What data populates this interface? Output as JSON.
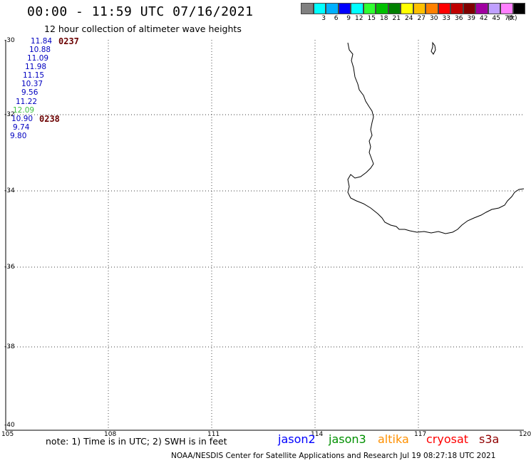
{
  "header": {
    "title": "00:00 - 11:59 UTC 07/16/2021",
    "subtitle": "12 hour collection of altimeter wave heights"
  },
  "colorbar": {
    "colors": [
      "#808080",
      "#00ffff",
      "#00b0ff",
      "#0000ff",
      "#00ffff",
      "#30ff30",
      "#00c000",
      "#008000",
      "#ffff00",
      "#ffc000",
      "#ff8000",
      "#ff0000",
      "#c00000",
      "#800000",
      "#a000a0",
      "#c0a0ff",
      "#ff80ff",
      "#000000"
    ],
    "labels": [
      "3",
      "6",
      "9",
      "12",
      "15",
      "18",
      "21",
      "24",
      "27",
      "30",
      "33",
      "36",
      "39",
      "42",
      "45",
      "70"
    ],
    "unit": "(ft)"
  },
  "axes": {
    "lat_labels": [
      "-30",
      "-32",
      "-34",
      "-36",
      "-38",
      "-40"
    ],
    "lon_labels": [
      "105",
      "108",
      "111",
      "114",
      "117",
      "120"
    ]
  },
  "wave_heights": [
    {
      "value": "11.84",
      "color": "#0000c0"
    },
    {
      "value": "10.88",
      "color": "#0000c0"
    },
    {
      "value": "11.09",
      "color": "#0000c0"
    },
    {
      "value": "11.98",
      "color": "#0000c0"
    },
    {
      "value": "11.15",
      "color": "#0000c0"
    },
    {
      "value": "10.37",
      "color": "#0000c0"
    },
    {
      "value": "9.56",
      "color": "#0000c0"
    },
    {
      "value": "11.22",
      "color": "#0000c0"
    },
    {
      "value": "12.09",
      "color": "#40c040"
    },
    {
      "value": "10.90",
      "color": "#0000c0"
    },
    {
      "value": "9.74",
      "color": "#0000c0"
    },
    {
      "value": "9.80",
      "color": "#0000c0"
    }
  ],
  "pass_times": [
    "0237",
    "0238"
  ],
  "footer": {
    "note": "note:  1) Time is in UTC;  2) SWH is in feet",
    "satellites": [
      {
        "name": "jason2",
        "color": "#0000ff"
      },
      {
        "name": "jason3",
        "color": "#009000"
      },
      {
        "name": "altika",
        "color": "#ff9000"
      },
      {
        "name": "cryosat",
        "color": "#ff0000"
      },
      {
        "name": "s3a",
        "color": "#900000"
      }
    ],
    "credit": "NOAA/NESDIS Center for Satellite Applications and Research    Jul 19 08:27:18 UTC 2021"
  }
}
